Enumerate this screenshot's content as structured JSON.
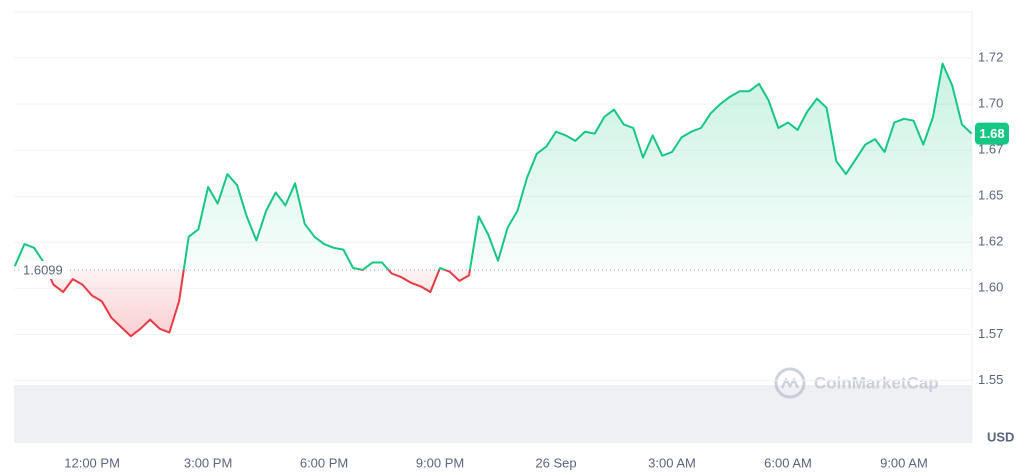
{
  "chart_data": {
    "type": "line",
    "x": [
      10,
      10.25,
      10.5,
      10.75,
      11,
      11.25,
      11.5,
      11.75,
      12,
      12.25,
      12.5,
      12.75,
      13,
      13.25,
      13.5,
      13.75,
      14,
      14.25,
      14.5,
      14.75,
      15,
      15.25,
      15.5,
      15.75,
      16,
      16.25,
      16.5,
      16.75,
      17,
      17.25,
      17.5,
      17.75,
      18,
      18.25,
      18.5,
      18.75,
      19,
      19.25,
      19.5,
      19.75,
      20,
      20.25,
      20.5,
      20.75,
      21,
      21.25,
      21.5,
      21.75,
      22,
      22.25,
      22.5,
      22.75,
      23,
      23.25,
      23.5,
      23.75,
      24,
      24.25,
      24.5,
      24.75,
      25,
      25.25,
      25.5,
      25.75,
      26,
      26.25,
      26.5,
      26.75,
      27,
      27.25,
      27.5,
      27.75,
      28,
      28.25,
      28.5,
      28.75,
      29,
      29.25,
      29.5,
      29.75,
      30,
      30.25,
      30.5,
      30.75,
      31,
      31.25,
      31.5,
      31.75,
      32,
      32.25,
      32.5,
      32.75,
      33,
      33.25,
      33.5,
      33.75,
      34,
      34.25,
      34.5,
      34.75
    ],
    "series": [
      {
        "name": "USD",
        "color": "#16c784",
        "down_color": "#ea3943",
        "values": [
          1.612,
          1.624,
          1.622,
          1.614,
          1.602,
          1.598,
          1.605,
          1.602,
          1.596,
          1.593,
          1.584,
          1.579,
          1.574,
          1.578,
          1.583,
          1.578,
          1.576,
          1.593,
          1.628,
          1.632,
          1.655,
          1.646,
          1.662,
          1.656,
          1.639,
          1.626,
          1.642,
          1.652,
          1.645,
          1.657,
          1.635,
          1.628,
          1.624,
          1.622,
          1.621,
          1.611,
          1.61,
          1.614,
          1.614,
          1.608,
          1.606,
          1.603,
          1.601,
          1.598,
          1.611,
          1.609,
          1.604,
          1.607,
          1.639,
          1.629,
          1.615,
          1.633,
          1.642,
          1.66,
          1.673,
          1.677,
          1.685,
          1.683,
          1.68,
          1.685,
          1.684,
          1.693,
          1.697,
          1.689,
          1.687,
          1.671,
          1.683,
          1.672,
          1.674,
          1.682,
          1.685,
          1.687,
          1.695,
          1.7,
          1.704,
          1.707,
          1.707,
          1.711,
          1.702,
          1.687,
          1.69,
          1.686,
          1.696,
          1.703,
          1.698,
          1.669,
          1.662,
          1.67,
          1.678,
          1.681,
          1.674,
          1.69,
          1.692,
          1.691,
          1.678,
          1.693,
          1.722,
          1.71,
          1.689,
          1.684
        ]
      }
    ],
    "baseline": 1.6099,
    "current_price": {
      "value": 1.684,
      "label": "1.68"
    },
    "xlim": [
      9.98,
      34.76
    ],
    "xticks": [
      {
        "value": 12,
        "label": "12:00 PM"
      },
      {
        "value": 15,
        "label": "3:00 PM"
      },
      {
        "value": 18,
        "label": "6:00 PM"
      },
      {
        "value": 21,
        "label": "9:00 PM"
      },
      {
        "value": 24,
        "label": "26 Sep"
      },
      {
        "value": 27,
        "label": "3:00 AM"
      },
      {
        "value": 30,
        "label": "6:00 AM"
      },
      {
        "value": 33,
        "label": "9:00 AM"
      }
    ],
    "ylim": [
      1.516,
      1.75
    ],
    "yticks": [
      1.55,
      {
        "value": 1.575,
        "label": "1.57"
      },
      {
        "value": 1.6,
        "label": "1.60"
      },
      {
        "value": 1.625,
        "label": "1.62"
      },
      1.65,
      {
        "value": 1.675,
        "label": "1.67"
      },
      {
        "value": 1.7,
        "label": "1.70"
      },
      {
        "value": 1.725,
        "label": "1.72"
      }
    ],
    "y_axis_label": "USD",
    "watermark": "CoinMarketCap",
    "grid": true
  }
}
